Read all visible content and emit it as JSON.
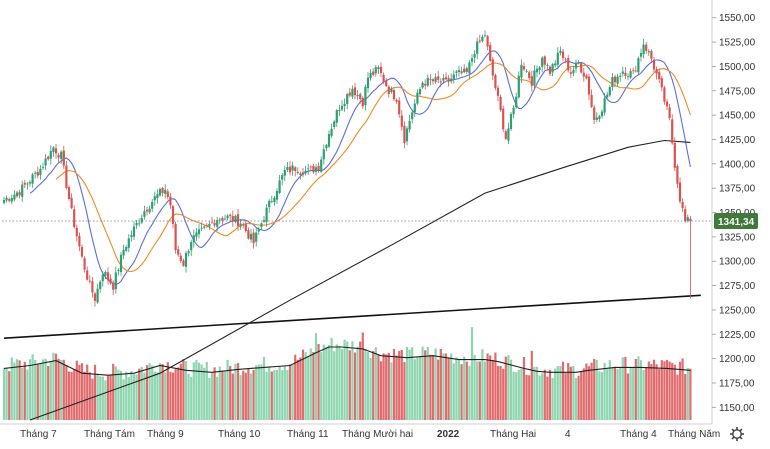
{
  "chart_data": {
    "type": "candlestick",
    "x_tick_labels": [
      "Tháng 7",
      "Tháng Tám",
      "Tháng 9",
      "Tháng 10",
      "Tháng 11",
      "Tháng Mười hai",
      "2022",
      "Tháng Hai",
      "4",
      "Tháng 4",
      "Tháng Năm"
    ],
    "y_tick_labels": [
      "1550,00",
      "1525,00",
      "1500,00",
      "1475,00",
      "1450,00",
      "1425,00",
      "1400,00",
      "1375,00",
      "1350,00",
      "1325,00",
      "1300,00",
      "1275,00",
      "1250,00",
      "1225,00",
      "1200,00",
      "1175,00",
      "1150,00"
    ],
    "ylim": [
      1137,
      1560
    ],
    "last_price_label": "1341,34",
    "last_price_value": 1341.34,
    "colors": {
      "up": "#2e9e73",
      "down": "#d9534f",
      "vol_up": "#8fd6b0",
      "vol_down": "#e06c6e",
      "ma_fast": "#5b6ee1",
      "ma_mid": "#f08a24",
      "ma_long": "#222222",
      "trendline": "#111111",
      "badge": "#3f7a3a"
    },
    "price_anchors": [
      [
        0,
        1363
      ],
      [
        6,
        1372
      ],
      [
        14,
        1395
      ],
      [
        19,
        1417
      ],
      [
        22,
        1408
      ],
      [
        26,
        1350
      ],
      [
        30,
        1303
      ],
      [
        33,
        1275
      ],
      [
        35,
        1262
      ],
      [
        38,
        1290
      ],
      [
        42,
        1275
      ],
      [
        46,
        1312
      ],
      [
        50,
        1333
      ],
      [
        54,
        1352
      ],
      [
        58,
        1365
      ],
      [
        62,
        1374
      ],
      [
        64,
        1358
      ],
      [
        66,
        1312
      ],
      [
        69,
        1298
      ],
      [
        72,
        1322
      ],
      [
        77,
        1332
      ],
      [
        82,
        1344
      ],
      [
        86,
        1345
      ],
      [
        91,
        1340
      ],
      [
        96,
        1319
      ],
      [
        100,
        1346
      ],
      [
        104,
        1370
      ],
      [
        108,
        1392
      ],
      [
        112,
        1396
      ],
      [
        117,
        1392
      ],
      [
        121,
        1398
      ],
      [
        125,
        1432
      ],
      [
        129,
        1459
      ],
      [
        134,
        1478
      ],
      [
        138,
        1464
      ],
      [
        140,
        1489
      ],
      [
        144,
        1497
      ],
      [
        148,
        1476
      ],
      [
        151,
        1468
      ],
      [
        154,
        1426
      ],
      [
        157,
        1454
      ],
      [
        161,
        1484
      ],
      [
        166,
        1485
      ],
      [
        170,
        1483
      ],
      [
        174,
        1492
      ],
      [
        178,
        1493
      ],
      [
        181,
        1517
      ],
      [
        185,
        1533
      ],
      [
        187,
        1503
      ],
      [
        190,
        1466
      ],
      [
        193,
        1427
      ],
      [
        196,
        1456
      ],
      [
        199,
        1505
      ],
      [
        203,
        1485
      ],
      [
        207,
        1510
      ],
      [
        210,
        1495
      ],
      [
        214,
        1515
      ],
      [
        218,
        1494
      ],
      [
        221,
        1503
      ],
      [
        224,
        1488
      ],
      [
        227,
        1445
      ],
      [
        230,
        1458
      ],
      [
        234,
        1485
      ],
      [
        238,
        1496
      ],
      [
        242,
        1492
      ],
      [
        246,
        1524
      ],
      [
        249,
        1508
      ],
      [
        252,
        1483
      ],
      [
        254,
        1465
      ],
      [
        256,
        1444
      ],
      [
        258,
        1400
      ],
      [
        260,
        1365
      ],
      [
        262,
        1340
      ],
      [
        264,
        1341
      ]
    ],
    "volume_anchors": [
      [
        0,
        1190
      ],
      [
        10,
        1193
      ],
      [
        20,
        1198
      ],
      [
        30,
        1185
      ],
      [
        40,
        1183
      ],
      [
        50,
        1185
      ],
      [
        60,
        1193
      ],
      [
        70,
        1188
      ],
      [
        80,
        1186
      ],
      [
        90,
        1189
      ],
      [
        100,
        1191
      ],
      [
        110,
        1193
      ],
      [
        120,
        1206
      ],
      [
        125,
        1212
      ],
      [
        130,
        1212
      ],
      [
        138,
        1210
      ],
      [
        145,
        1203
      ],
      [
        155,
        1201
      ],
      [
        165,
        1203
      ],
      [
        175,
        1199
      ],
      [
        185,
        1199
      ],
      [
        190,
        1197
      ],
      [
        200,
        1190
      ],
      [
        205,
        1187
      ],
      [
        210,
        1186
      ],
      [
        220,
        1186
      ],
      [
        225,
        1188
      ],
      [
        235,
        1191
      ],
      [
        245,
        1191
      ],
      [
        255,
        1190
      ],
      [
        264,
        1188
      ]
    ],
    "trendline_data": {
      "start": [
        0,
        1221
      ],
      "end": [
        268,
        1265
      ]
    },
    "long_ma_line": [
      [
        10,
        1137
      ],
      [
        60,
        1185
      ],
      [
        110,
        1260
      ],
      [
        150,
        1318
      ],
      [
        185,
        1370
      ],
      [
        215,
        1396
      ],
      [
        240,
        1417
      ],
      [
        254,
        1424
      ],
      [
        264,
        1422
      ]
    ]
  }
}
